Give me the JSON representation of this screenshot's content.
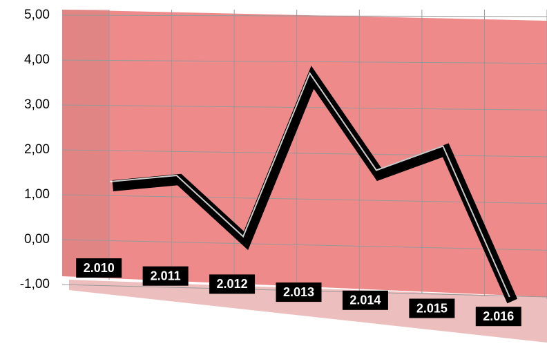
{
  "chart_data": {
    "type": "line",
    "categories": [
      "2.010",
      "2.011",
      "2.012",
      "2.013",
      "2.014",
      "2.015",
      "2.016"
    ],
    "values": [
      1.2,
      1.4,
      0.1,
      3.8,
      1.7,
      2.3,
      -1.0
    ],
    "color": "#000000",
    "ylim": [
      -1,
      5
    ],
    "yticks": [
      {
        "value": -1,
        "label": "-1,00"
      },
      {
        "value": 0,
        "label": "0,00"
      },
      {
        "value": 1,
        "label": "1,00"
      },
      {
        "value": 2,
        "label": "2,00"
      },
      {
        "value": 3,
        "label": "3,00"
      },
      {
        "value": 4,
        "label": "4,00"
      },
      {
        "value": 5,
        "label": "5,00"
      }
    ],
    "grid": true
  }
}
